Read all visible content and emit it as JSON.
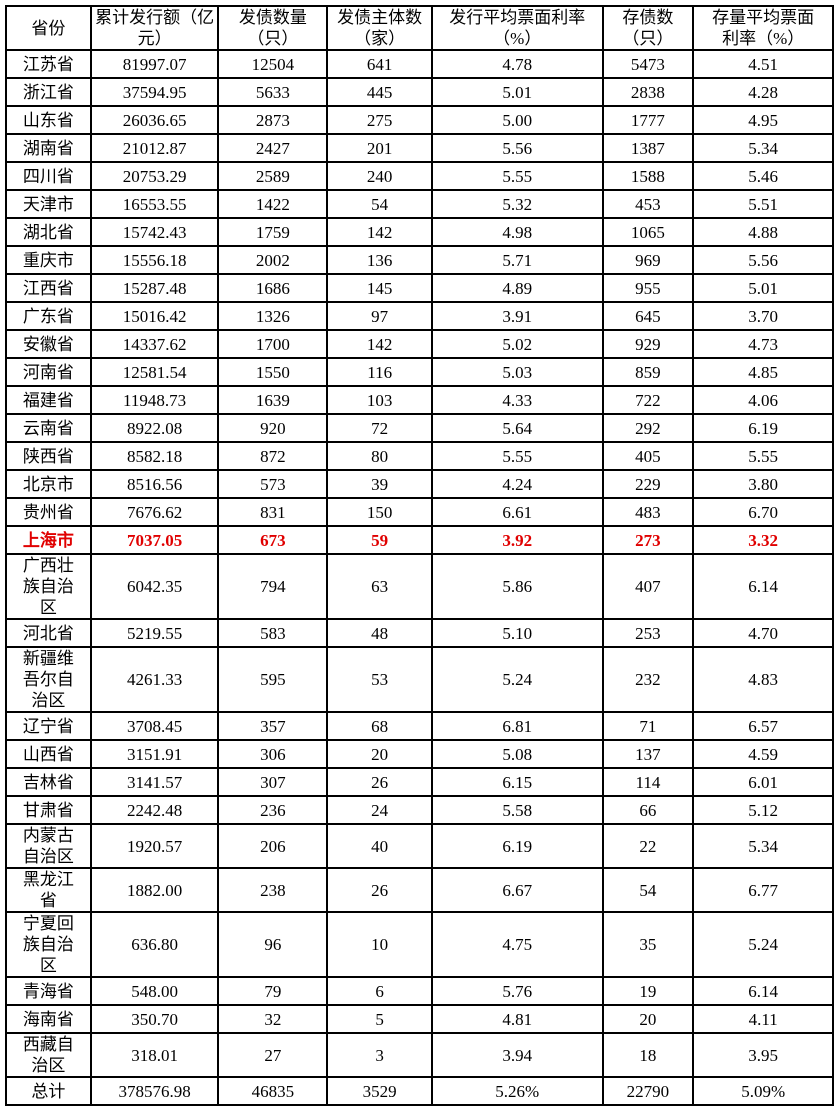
{
  "headers": [
    "省份",
    "累计发行额（亿元）",
    "发债数量（只）",
    "发债主体数（家）",
    "发行平均票面利率（%）",
    "存债数（只）",
    "存量平均票面利率（%）"
  ],
  "header_lines": [
    [
      "省份"
    ],
    [
      "累计发行额",
      "（亿元）"
    ],
    [
      "发债数量",
      "（只）"
    ],
    [
      "发债主体数",
      "（家）"
    ],
    [
      "发行平均票面利率",
      "（%）"
    ],
    [
      "存债数",
      "（只）"
    ],
    [
      "存量平均票面",
      "利率（%）"
    ]
  ],
  "highlight_color": "#e00000",
  "rows": [
    [
      "江苏省",
      "81997.07",
      "12504",
      "641",
      "4.78",
      "5473",
      "4.51"
    ],
    [
      "浙江省",
      "37594.95",
      "5633",
      "445",
      "5.01",
      "2838",
      "4.28"
    ],
    [
      "山东省",
      "26036.65",
      "2873",
      "275",
      "5.00",
      "1777",
      "4.95"
    ],
    [
      "湖南省",
      "21012.87",
      "2427",
      "201",
      "5.56",
      "1387",
      "5.34"
    ],
    [
      "四川省",
      "20753.29",
      "2589",
      "240",
      "5.55",
      "1588",
      "5.46"
    ],
    [
      "天津市",
      "16553.55",
      "1422",
      "54",
      "5.32",
      "453",
      "5.51"
    ],
    [
      "湖北省",
      "15742.43",
      "1759",
      "142",
      "4.98",
      "1065",
      "4.88"
    ],
    [
      "重庆市",
      "15556.18",
      "2002",
      "136",
      "5.71",
      "969",
      "5.56"
    ],
    [
      "江西省",
      "15287.48",
      "1686",
      "145",
      "4.89",
      "955",
      "5.01"
    ],
    [
      "广东省",
      "15016.42",
      "1326",
      "97",
      "3.91",
      "645",
      "3.70"
    ],
    [
      "安徽省",
      "14337.62",
      "1700",
      "142",
      "5.02",
      "929",
      "4.73"
    ],
    [
      "河南省",
      "12581.54",
      "1550",
      "116",
      "5.03",
      "859",
      "4.85"
    ],
    [
      "福建省",
      "11948.73",
      "1639",
      "103",
      "4.33",
      "722",
      "4.06"
    ],
    [
      "云南省",
      "8922.08",
      "920",
      "72",
      "5.64",
      "292",
      "6.19"
    ],
    [
      "陕西省",
      "8582.18",
      "872",
      "80",
      "5.55",
      "405",
      "5.55"
    ],
    [
      "北京市",
      "8516.56",
      "573",
      "39",
      "4.24",
      "229",
      "3.80"
    ],
    [
      "贵州省",
      "7676.62",
      "831",
      "150",
      "6.61",
      "483",
      "6.70"
    ],
    [
      "上海市",
      "7037.05",
      "673",
      "59",
      "3.92",
      "273",
      "3.32"
    ],
    [
      "广西壮族自治区",
      "6042.35",
      "794",
      "63",
      "5.86",
      "407",
      "6.14"
    ],
    [
      "河北省",
      "5219.55",
      "583",
      "48",
      "5.10",
      "253",
      "4.70"
    ],
    [
      "新疆维吾尔自治区",
      "4261.33",
      "595",
      "53",
      "5.24",
      "232",
      "4.83"
    ],
    [
      "辽宁省",
      "3708.45",
      "357",
      "68",
      "6.81",
      "71",
      "6.57"
    ],
    [
      "山西省",
      "3151.91",
      "306",
      "20",
      "5.08",
      "137",
      "4.59"
    ],
    [
      "吉林省",
      "3141.57",
      "307",
      "26",
      "6.15",
      "114",
      "6.01"
    ],
    [
      "甘肃省",
      "2242.48",
      "236",
      "24",
      "5.58",
      "66",
      "5.12"
    ],
    [
      "内蒙古自治区",
      "1920.57",
      "206",
      "40",
      "6.19",
      "22",
      "5.34"
    ],
    [
      "黑龙江省",
      "1882.00",
      "238",
      "26",
      "6.67",
      "54",
      "6.77"
    ],
    [
      "宁夏回族自治区",
      "636.80",
      "96",
      "10",
      "4.75",
      "35",
      "5.24"
    ],
    [
      "青海省",
      "548.00",
      "79",
      "6",
      "5.76",
      "19",
      "6.14"
    ],
    [
      "海南省",
      "350.70",
      "32",
      "5",
      "4.81",
      "20",
      "4.11"
    ],
    [
      "西藏自治区",
      "318.01",
      "27",
      "3",
      "3.94",
      "18",
      "3.95"
    ]
  ],
  "highlighted_row": "上海市",
  "total": [
    "总计",
    "378576.98",
    "46835",
    "3529",
    "5.26%",
    "22790",
    "5.09%"
  ]
}
